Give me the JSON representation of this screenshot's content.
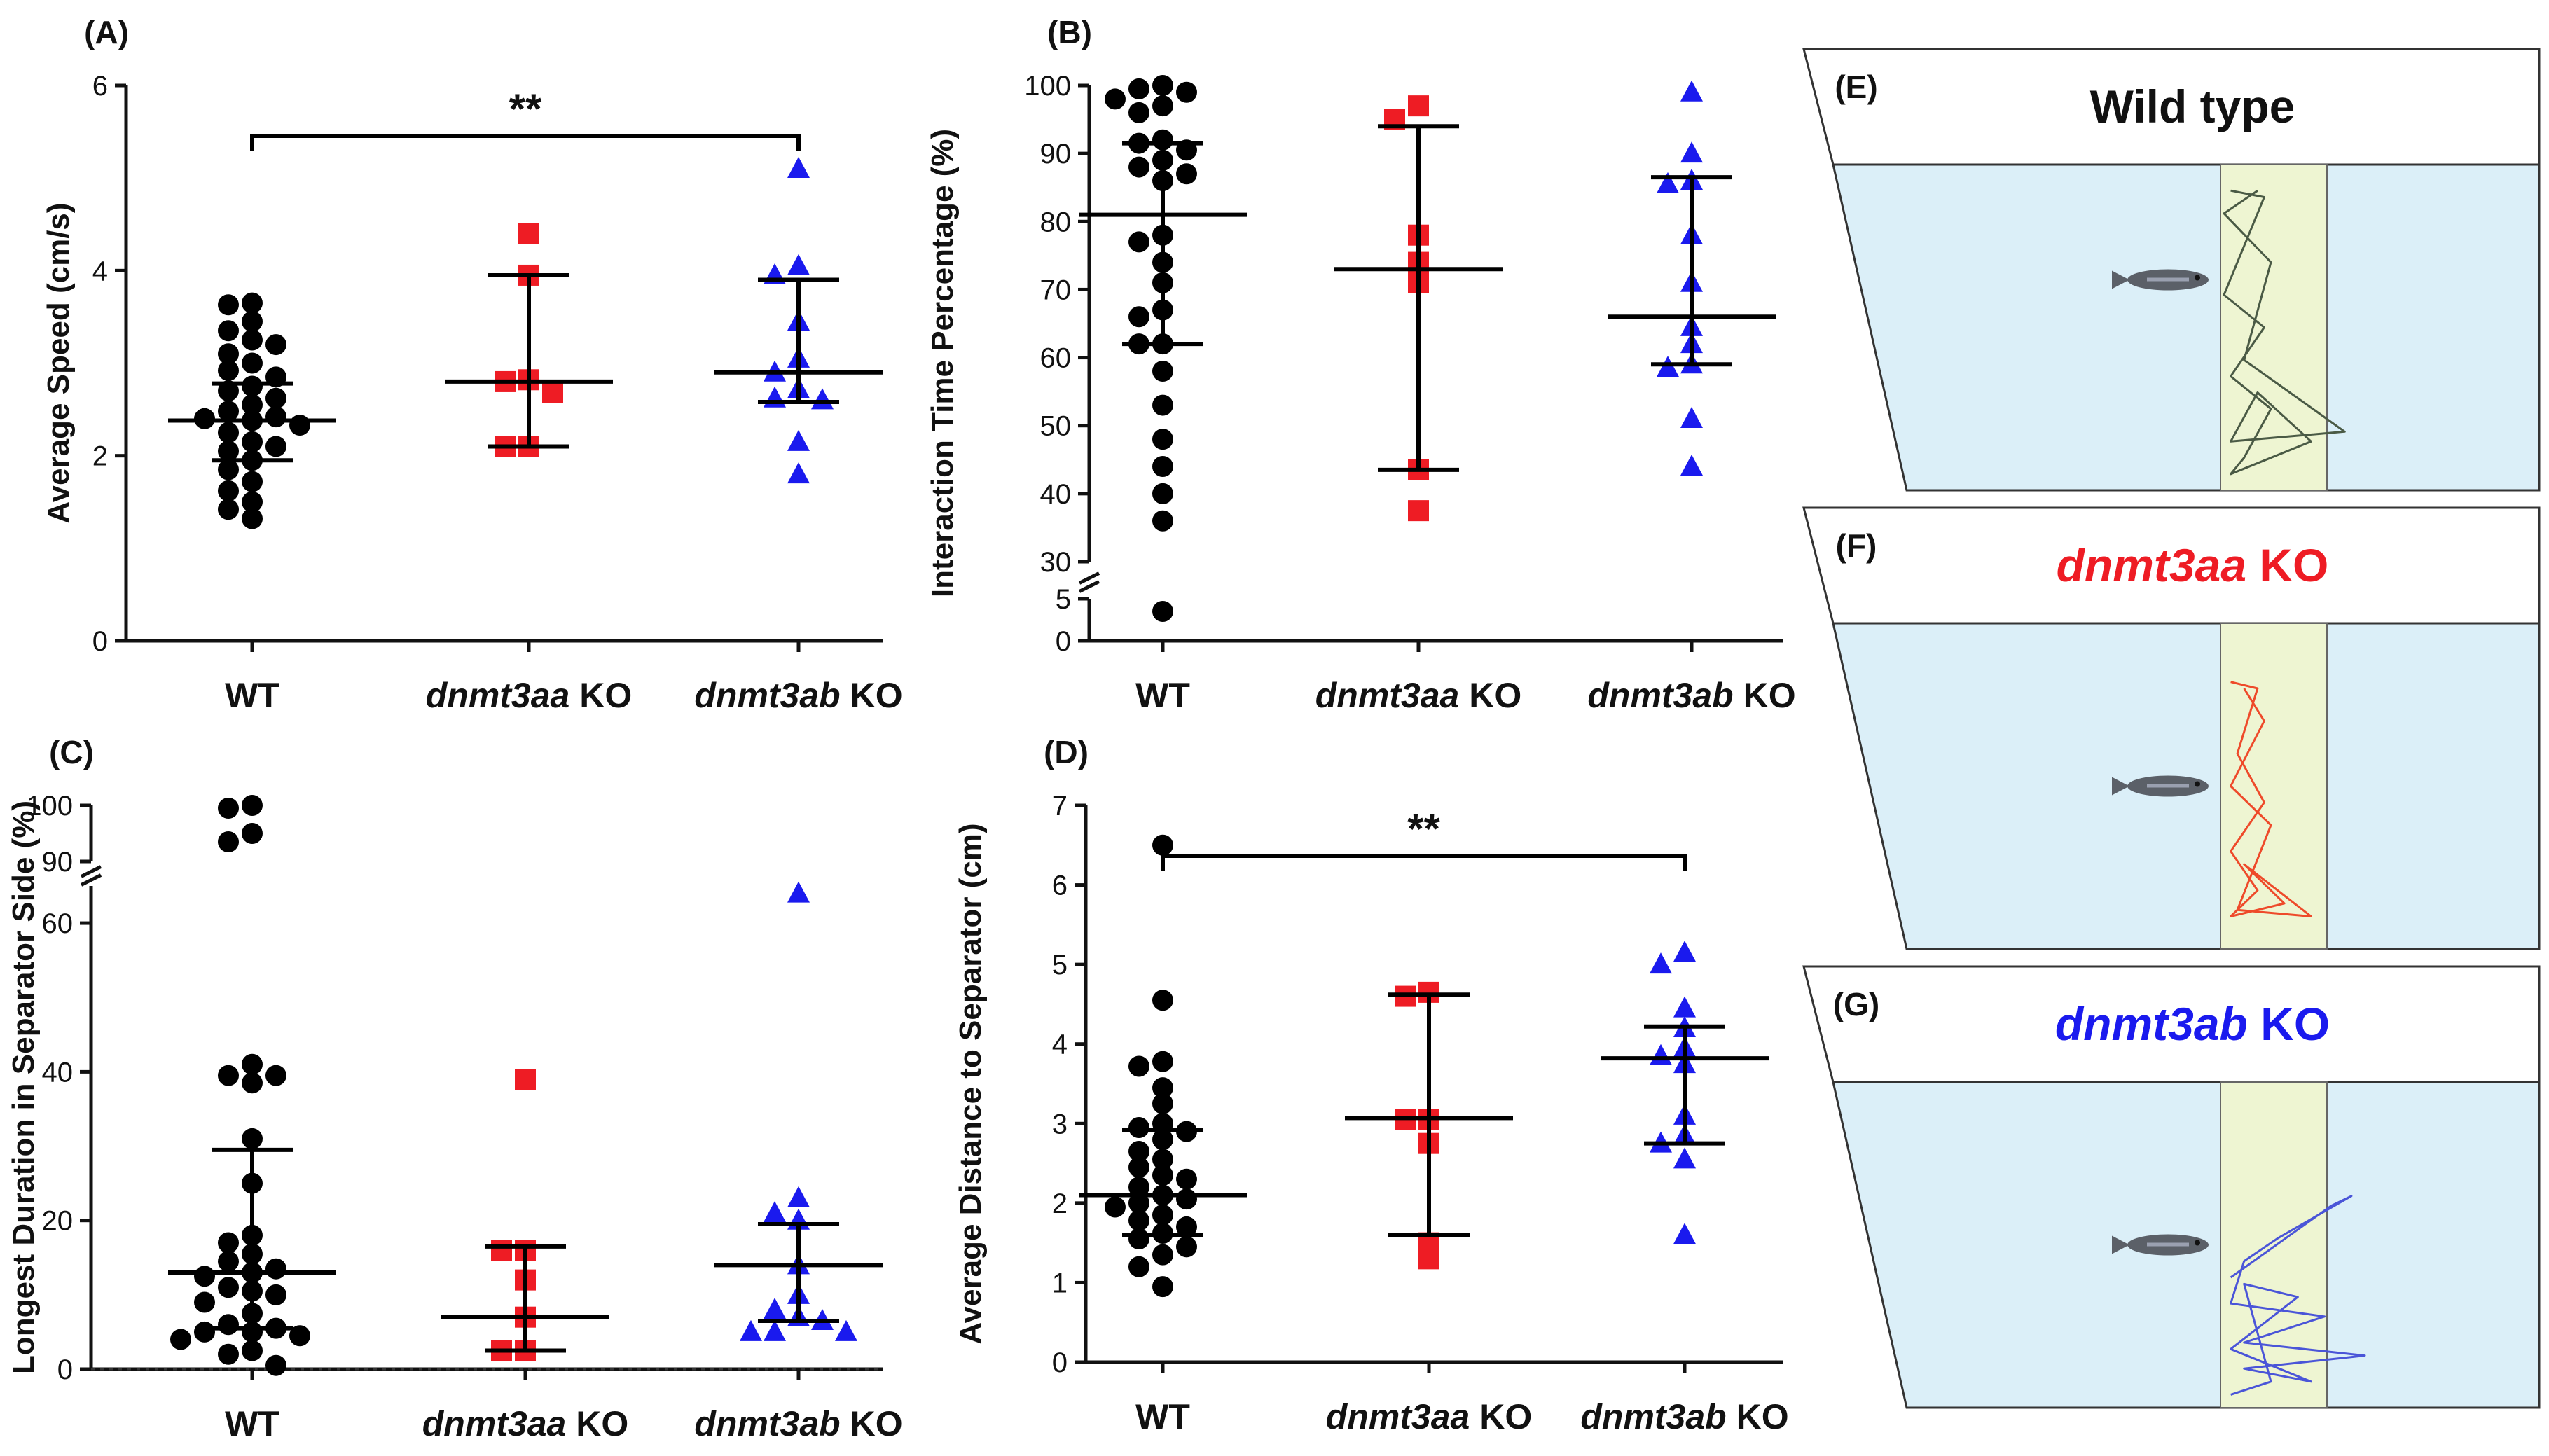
{
  "colors": {
    "wt": "#000000",
    "aa": "#ee1c24",
    "ab": "#1a1aee",
    "tank": "#dbeff8",
    "zone": "#eef5d2"
  },
  "chart_data": [
    {
      "id": "A",
      "type": "scatter",
      "panel_label": "(A)",
      "ylabel": "Average Speed (cm/s)",
      "categories": [
        "WT",
        "dnmt3aa KO",
        "dnmt3ab KO"
      ],
      "ylim": [
        0,
        6
      ],
      "yticks": [
        0,
        2,
        4,
        6
      ],
      "significance": {
        "from": 0,
        "to": 2,
        "label": "**"
      },
      "series": [
        {
          "name": "WT",
          "marker": "circle",
          "color": "#000000",
          "values": [
            3.65,
            3.63,
            3.45,
            3.35,
            3.25,
            3.2,
            3.1,
            3.0,
            2.92,
            2.85,
            2.75,
            2.7,
            2.62,
            2.55,
            2.48,
            2.42,
            2.4,
            2.38,
            2.33,
            2.25,
            2.15,
            2.1,
            2.05,
            1.95,
            1.85,
            1.72,
            1.62,
            1.5,
            1.42,
            1.32
          ],
          "median": 2.38,
          "err_low": 1.95,
          "err_high": 2.78
        },
        {
          "name": "dnmt3aa KO",
          "marker": "square",
          "color": "#ee1c24",
          "values": [
            4.4,
            3.95,
            2.82,
            2.8,
            2.68,
            2.1,
            2.1
          ],
          "median": 2.8,
          "err_low": 2.1,
          "err_high": 3.95
        },
        {
          "name": "dnmt3ab KO",
          "marker": "triangle",
          "color": "#1a1aee",
          "values": [
            5.1,
            4.05,
            3.95,
            3.45,
            3.05,
            2.9,
            2.72,
            2.62,
            2.6,
            2.15,
            1.8
          ],
          "median": 2.9,
          "err_low": 2.58,
          "err_high": 3.9
        }
      ]
    },
    {
      "id": "B",
      "type": "scatter",
      "panel_label": "(B)",
      "ylabel": "Interaction Time Percentage (%)",
      "categories": [
        "WT",
        "dnmt3aa KO",
        "dnmt3ab KO"
      ],
      "ylim": [
        0,
        100
      ],
      "axis_break": [
        5,
        30
      ],
      "yticks": [
        0,
        5,
        30,
        40,
        50,
        60,
        70,
        80,
        90,
        100
      ],
      "series": [
        {
          "name": "WT",
          "marker": "circle",
          "color": "#000000",
          "values": [
            100,
            99.5,
            99,
            98,
            97,
            96,
            92,
            91.5,
            90.5,
            89,
            88,
            87,
            86,
            78,
            77,
            74,
            71,
            67,
            66,
            62,
            62,
            58,
            53,
            48,
            44,
            40,
            36,
            3.5
          ],
          "median": 81,
          "err_low": 62,
          "err_high": 91.5
        },
        {
          "name": "dnmt3aa KO",
          "marker": "square",
          "color": "#ee1c24",
          "values": [
            97,
            95,
            78,
            74,
            71,
            43.5,
            37.5
          ],
          "median": 73,
          "err_low": 43.5,
          "err_high": 94
        },
        {
          "name": "dnmt3ab KO",
          "marker": "triangle",
          "color": "#1a1aee",
          "values": [
            99,
            90,
            86,
            85.5,
            78,
            71,
            64.5,
            62,
            59,
            58.5,
            51,
            44
          ],
          "median": 66,
          "err_low": 59,
          "err_high": 86.5
        }
      ]
    },
    {
      "id": "C",
      "type": "scatter",
      "panel_label": "(C)",
      "ylabel": "Longest  Duration in Separator Side (%)",
      "categories": [
        "WT",
        "dnmt3aa KO",
        "dnmt3ab KO"
      ],
      "ylim": [
        0,
        100
      ],
      "axis_break": [
        65,
        90
      ],
      "yticks": [
        0,
        20,
        40,
        60,
        90,
        100
      ],
      "zero_line": true,
      "series": [
        {
          "name": "WT",
          "marker": "circle",
          "color": "#000000",
          "values": [
            100,
            99.5,
            95,
            93.5,
            41,
            39.5,
            39.5,
            38.5,
            31,
            25,
            18,
            17,
            15.5,
            14.5,
            13.5,
            13,
            12.5,
            11,
            10.5,
            10,
            9,
            7.5,
            6,
            5.5,
            5,
            5,
            4.5,
            4,
            2.5,
            2,
            0.5
          ],
          "median": 13,
          "err_low": 5.5,
          "err_high": 29.5
        },
        {
          "name": "dnmt3aa KO",
          "marker": "square",
          "color": "#ee1c24",
          "values": [
            39,
            16,
            16,
            12,
            7,
            2.5,
            2.5
          ],
          "median": 7,
          "err_low": 2.5,
          "err_high": 16.5
        },
        {
          "name": "dnmt3ab KO",
          "marker": "triangle",
          "color": "#1a1aee",
          "values": [
            64,
            23,
            21,
            20,
            14,
            10,
            8,
            7,
            6.5,
            5,
            5,
            5
          ],
          "median": 14,
          "err_low": 6.5,
          "err_high": 19.5
        }
      ]
    },
    {
      "id": "D",
      "type": "scatter",
      "panel_label": "(D)",
      "ylabel": "Average Distance to Separator (cm)",
      "categories": [
        "WT",
        "dnmt3aa KO",
        "dnmt3ab KO"
      ],
      "ylim": [
        0,
        7
      ],
      "yticks": [
        0,
        1,
        2,
        3,
        4,
        5,
        6,
        7
      ],
      "significance": {
        "from": 0,
        "to": 2,
        "label": "**"
      },
      "series": [
        {
          "name": "WT",
          "marker": "circle",
          "color": "#000000",
          "values": [
            6.5,
            4.55,
            3.78,
            3.72,
            3.45,
            3.25,
            3.0,
            2.95,
            2.9,
            2.8,
            2.65,
            2.55,
            2.45,
            2.35,
            2.3,
            2.2,
            2.1,
            2.05,
            2.0,
            1.95,
            1.85,
            1.78,
            1.7,
            1.62,
            1.55,
            1.45,
            1.35,
            1.2,
            0.95
          ],
          "median": 2.1,
          "err_low": 1.6,
          "err_high": 2.92
        },
        {
          "name": "dnmt3aa KO",
          "marker": "square",
          "color": "#ee1c24",
          "values": [
            4.65,
            4.6,
            3.05,
            3.05,
            2.75,
            1.5,
            1.3
          ],
          "median": 3.07,
          "err_low": 1.6,
          "err_high": 4.62
        },
        {
          "name": "dnmt3ab KO",
          "marker": "triangle",
          "color": "#1a1aee",
          "values": [
            5.15,
            5.0,
            4.45,
            4.2,
            3.95,
            3.85,
            3.75,
            3.1,
            2.85,
            2.75,
            2.55,
            1.6
          ],
          "median": 3.82,
          "err_low": 2.75,
          "err_high": 4.22
        }
      ]
    }
  ],
  "tanks": [
    {
      "label": "(E)",
      "title": "Wild type",
      "title_color": "#111111",
      "title_italic": false
    },
    {
      "label": "(F)",
      "title_gene": "dnmt3aa",
      "title_suffix": " KO",
      "title_color": "#ee1c24",
      "title_italic": true
    },
    {
      "label": "(G)",
      "title_gene": "dnmt3ab",
      "title_suffix": " KO",
      "title_color": "#1a1aee",
      "title_italic": true
    }
  ],
  "tracks": [
    {
      "color": "#4a5a45",
      "points": [
        [
          0.58,
          0.08
        ],
        [
          0.63,
          0.1
        ],
        [
          0.6,
          0.25
        ],
        [
          0.57,
          0.4
        ],
        [
          0.63,
          0.5
        ],
        [
          0.58,
          0.65
        ],
        [
          0.64,
          0.75
        ],
        [
          0.6,
          0.9
        ],
        [
          0.58,
          0.95
        ],
        [
          0.7,
          0.85
        ],
        [
          0.62,
          0.7
        ],
        [
          0.58,
          0.85
        ],
        [
          0.75,
          0.82
        ],
        [
          0.6,
          0.6
        ],
        [
          0.64,
          0.3
        ],
        [
          0.57,
          0.15
        ],
        [
          0.62,
          0.08
        ]
      ]
    },
    {
      "color": "#ee4a2a",
      "points": [
        [
          0.58,
          0.18
        ],
        [
          0.62,
          0.2
        ],
        [
          0.59,
          0.4
        ],
        [
          0.63,
          0.55
        ],
        [
          0.58,
          0.7
        ],
        [
          0.62,
          0.82
        ],
        [
          0.58,
          0.9
        ],
        [
          0.66,
          0.86
        ],
        [
          0.6,
          0.74
        ],
        [
          0.7,
          0.9
        ],
        [
          0.59,
          0.88
        ],
        [
          0.64,
          0.62
        ],
        [
          0.58,
          0.5
        ],
        [
          0.63,
          0.3
        ],
        [
          0.6,
          0.2
        ]
      ]
    },
    {
      "color": "#4a55d8",
      "points": [
        [
          0.58,
          0.6
        ],
        [
          0.73,
          0.38
        ],
        [
          0.76,
          0.35
        ],
        [
          0.65,
          0.48
        ],
        [
          0.6,
          0.55
        ],
        [
          0.58,
          0.68
        ],
        [
          0.72,
          0.72
        ],
        [
          0.6,
          0.8
        ],
        [
          0.78,
          0.84
        ],
        [
          0.6,
          0.88
        ],
        [
          0.7,
          0.92
        ],
        [
          0.58,
          0.82
        ],
        [
          0.68,
          0.66
        ],
        [
          0.6,
          0.62
        ],
        [
          0.64,
          0.92
        ],
        [
          0.58,
          0.96
        ]
      ]
    }
  ]
}
